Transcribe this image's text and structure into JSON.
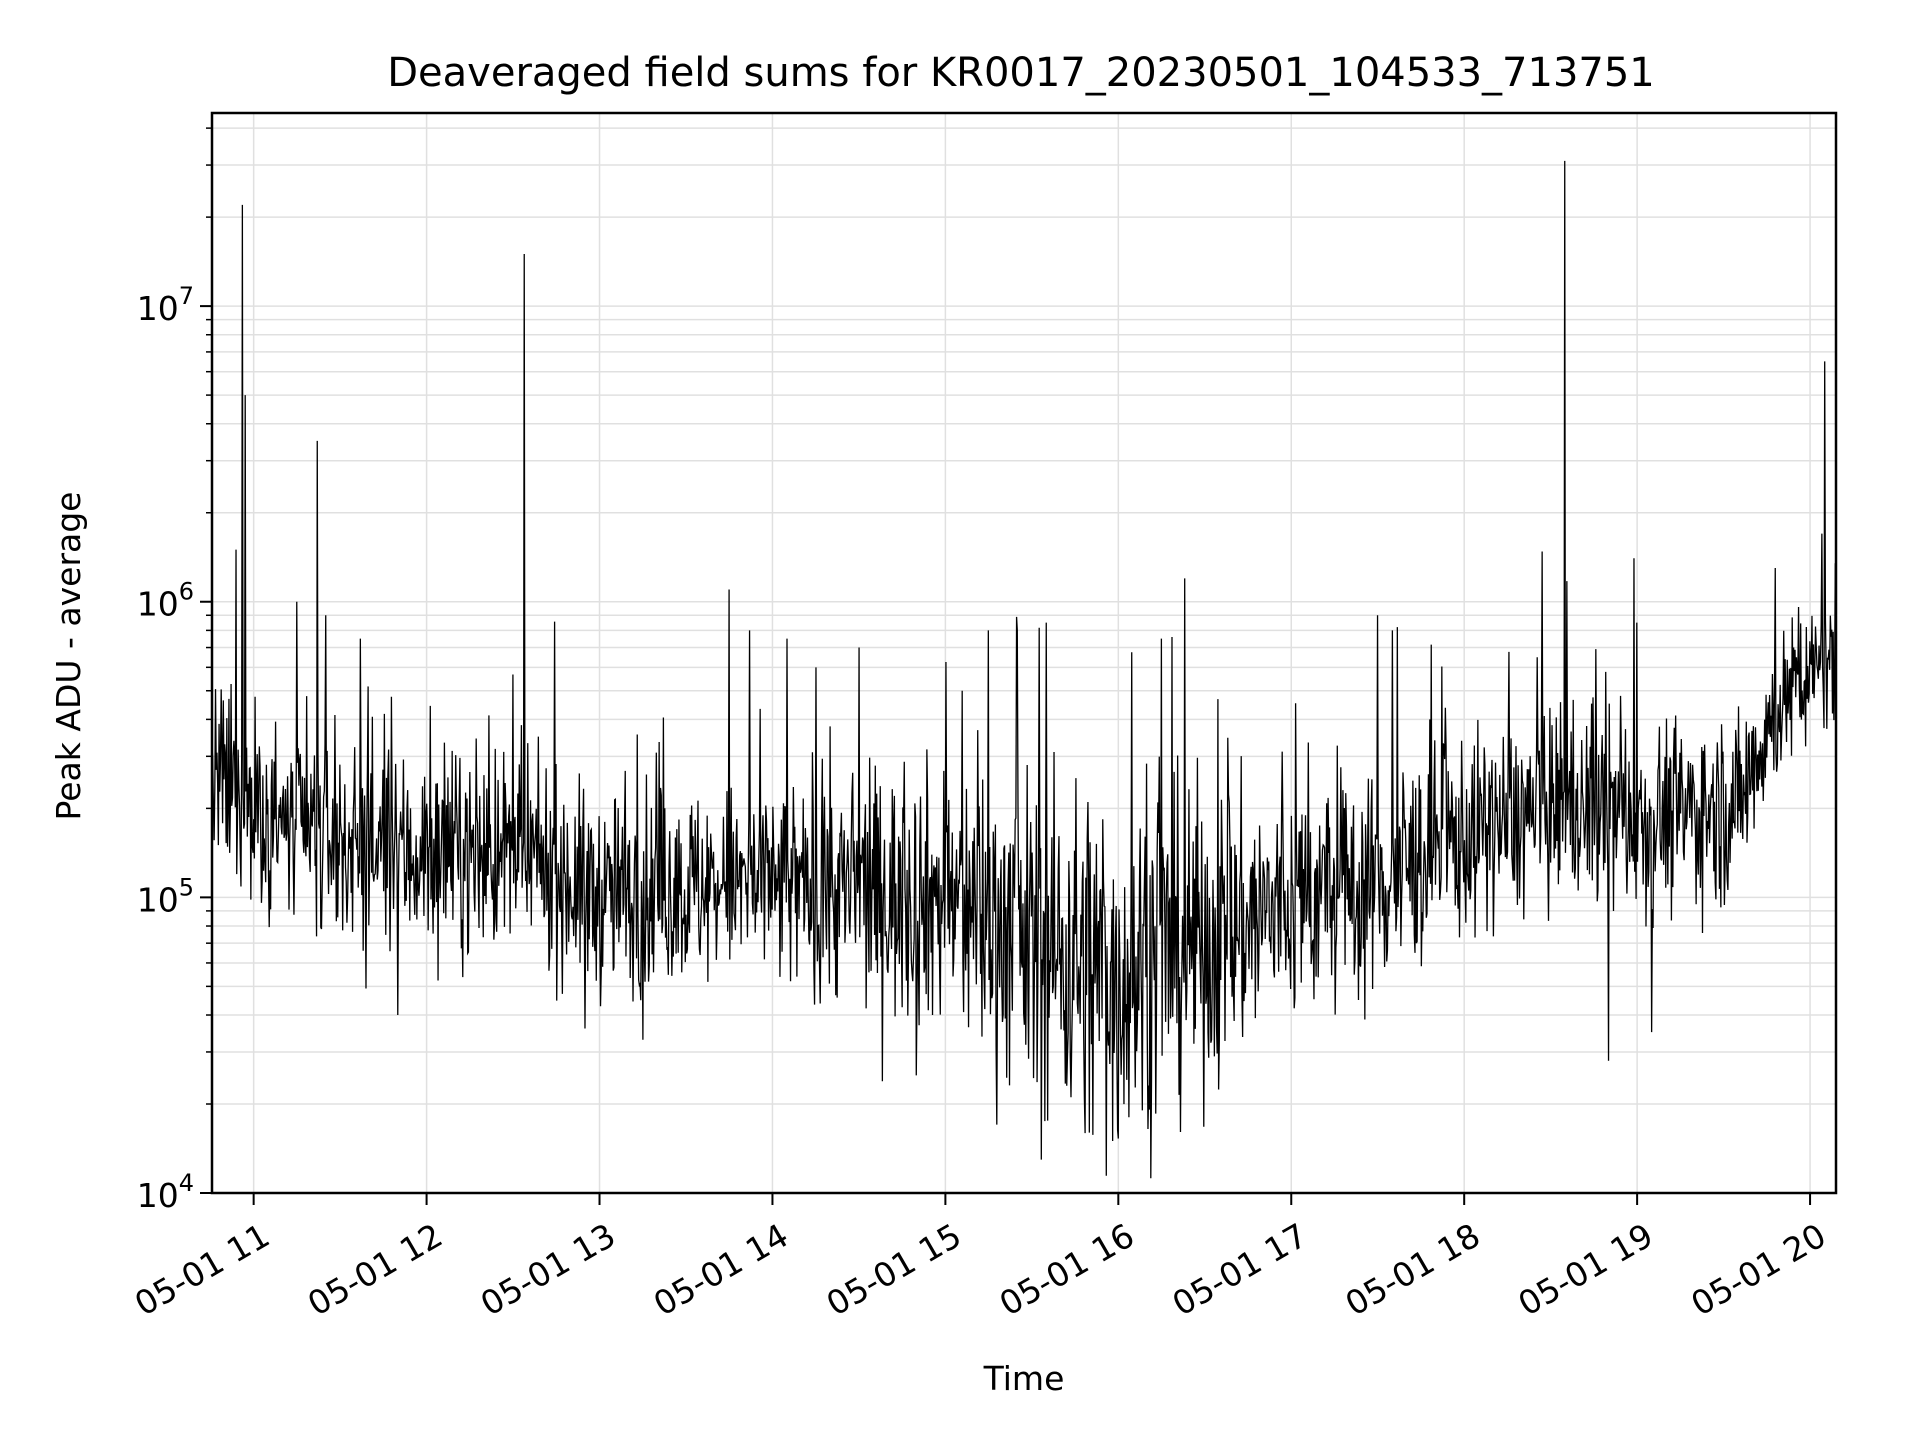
{
  "chart_data": {
    "type": "line",
    "title": "Deaveraged field sums for KR0017_20230501_104533_713751",
    "xlabel": "Time",
    "ylabel": "Peak ADU - average",
    "y_scale": "log",
    "ylim": [
      10000,
      45000000
    ],
    "xlim": [
      "2023-05-01T10:45:33",
      "2023-05-01T20:09:00"
    ],
    "grid": true,
    "legend": "none",
    "line_color": "#000000",
    "grid_color": "#e0e0e0",
    "x_ticks": [
      {
        "time": "2023-05-01T11:00",
        "label": "05-01 11"
      },
      {
        "time": "2023-05-01T12:00",
        "label": "05-01 12"
      },
      {
        "time": "2023-05-01T13:00",
        "label": "05-01 13"
      },
      {
        "time": "2023-05-01T14:00",
        "label": "05-01 14"
      },
      {
        "time": "2023-05-01T15:00",
        "label": "05-01 15"
      },
      {
        "time": "2023-05-01T16:00",
        "label": "05-01 16"
      },
      {
        "time": "2023-05-01T17:00",
        "label": "05-01 17"
      },
      {
        "time": "2023-05-01T18:00",
        "label": "05-01 18"
      },
      {
        "time": "2023-05-01T19:00",
        "label": "05-01 19"
      },
      {
        "time": "2023-05-01T20:00",
        "label": "05-01 20"
      }
    ],
    "y_ticks": [
      {
        "value": 10000,
        "base": "10",
        "exp": "4"
      },
      {
        "value": 100000,
        "base": "10",
        "exp": "5"
      },
      {
        "value": 1000000,
        "base": "10",
        "exp": "6"
      },
      {
        "value": 10000000,
        "base": "10",
        "exp": "7"
      }
    ],
    "x": [
      "2023-05-01T10:45:33",
      "2023-05-01T10:55:00",
      "2023-05-01T10:56:00",
      "2023-05-01T10:57:00",
      "2023-05-01T10:58:00",
      "2023-05-01T11:05:00",
      "2023-05-01T11:20:00",
      "2023-05-01T11:22:00",
      "2023-05-01T11:30:00",
      "2023-05-01T11:40:00",
      "2023-05-01T11:50:00",
      "2023-05-01T12:00:00",
      "2023-05-01T12:15:00",
      "2023-05-01T12:32:00",
      "2023-05-01T12:34:00",
      "2023-05-01T12:45:00",
      "2023-05-01T13:00:00",
      "2023-05-01T13:15:00",
      "2023-05-01T13:30:00",
      "2023-05-01T13:40:00",
      "2023-05-01T13:48:00",
      "2023-05-01T14:00:00",
      "2023-05-01T14:20:00",
      "2023-05-01T14:40:00",
      "2023-05-01T15:00:00",
      "2023-05-01T15:15:00",
      "2023-05-01T15:30:00",
      "2023-05-01T15:45:00",
      "2023-05-01T16:00:00",
      "2023-05-01T16:15:00",
      "2023-05-01T16:30:00",
      "2023-05-01T16:45:00",
      "2023-05-01T17:00:00",
      "2023-05-01T17:20:00",
      "2023-05-01T17:40:00",
      "2023-05-01T18:00:00",
      "2023-05-01T18:20:00",
      "2023-05-01T18:33:00",
      "2023-05-01T18:35:00",
      "2023-05-01T18:50:00",
      "2023-05-01T19:10:00",
      "2023-05-01T19:30:00",
      "2023-05-01T19:40:00",
      "2023-05-01T19:50:00",
      "2023-05-01T20:00:00",
      "2023-05-01T20:05:00",
      "2023-05-01T20:09:00"
    ],
    "y": [
      280000,
      1000000,
      22000000,
      5000000,
      900000,
      200000,
      170000,
      3500000,
      160000,
      150000,
      140000,
      150000,
      160000,
      150000,
      15000000,
      120000,
      100000,
      100000,
      110000,
      400000,
      120000,
      100000,
      100000,
      95000,
      80000,
      60000,
      40000,
      35000,
      30000,
      40000,
      65000,
      80000,
      95000,
      100000,
      110000,
      150000,
      200000,
      200000,
      31000000,
      210000,
      200000,
      200000,
      190000,
      400000,
      550000,
      6500000,
      750000
    ],
    "noise_profile": {
      "x": [
        "2023-05-01T10:45:33",
        "2023-05-01T11:10:00",
        "2023-05-01T11:50:00",
        "2023-05-01T12:30:00",
        "2023-05-01T13:00:00",
        "2023-05-01T13:40:00",
        "2023-05-01T14:20:00",
        "2023-05-01T15:00:00",
        "2023-05-01T15:30:00",
        "2023-05-01T16:00:00",
        "2023-05-01T16:30:00",
        "2023-05-01T17:00:00",
        "2023-05-01T17:30:00",
        "2023-05-01T18:00:00",
        "2023-05-01T18:30:00",
        "2023-05-01T19:00:00",
        "2023-05-01T19:35:00",
        "2023-05-01T19:50:00",
        "2023-05-01T20:09:00"
      ],
      "median": [
        250000,
        170000,
        140000,
        140000,
        100000,
        110000,
        105000,
        100000,
        70000,
        55000,
        70000,
        95000,
        110000,
        160000,
        200000,
        190000,
        200000,
        450000,
        650000
      ],
      "spread_decades": [
        0.22,
        0.22,
        0.22,
        0.22,
        0.22,
        0.22,
        0.24,
        0.3,
        0.38,
        0.42,
        0.34,
        0.26,
        0.25,
        0.22,
        0.22,
        0.22,
        0.2,
        0.16,
        0.16
      ]
    },
    "spikes": [
      {
        "x": "2023-05-01T10:54:00",
        "y": 1500000
      },
      {
        "x": "2023-05-01T11:15:00",
        "y": 1000000
      },
      {
        "x": "2023-05-01T11:25:00",
        "y": 900000
      },
      {
        "x": "2023-05-01T11:37:00",
        "y": 750000
      },
      {
        "x": "2023-05-01T13:45:00",
        "y": 1100000
      },
      {
        "x": "2023-05-01T13:52:00",
        "y": 800000
      },
      {
        "x": "2023-05-01T14:05:00",
        "y": 750000
      },
      {
        "x": "2023-05-01T14:15:00",
        "y": 600000
      },
      {
        "x": "2023-05-01T14:30:00",
        "y": 700000
      },
      {
        "x": "2023-05-01T15:15:00",
        "y": 800000
      },
      {
        "x": "2023-05-01T15:25:00",
        "y": 800000
      },
      {
        "x": "2023-05-01T15:35:00",
        "y": 850000
      },
      {
        "x": "2023-05-01T16:23:00",
        "y": 1200000
      },
      {
        "x": "2023-05-01T16:15:00",
        "y": 750000
      },
      {
        "x": "2023-05-01T17:30:00",
        "y": 900000
      },
      {
        "x": "2023-05-01T17:35:00",
        "y": 800000
      },
      {
        "x": "2023-05-01T19:00:00",
        "y": 850000
      },
      {
        "x": "2023-05-01T20:04:00",
        "y": 1700000
      },
      {
        "x": "2023-05-01T19:48:00",
        "y": 1300000
      }
    ],
    "dips": [
      {
        "x": "2023-05-01T11:50:00",
        "y": 40000
      },
      {
        "x": "2023-05-01T12:55:00",
        "y": 36000
      },
      {
        "x": "2023-05-01T13:15:00",
        "y": 33000
      },
      {
        "x": "2023-05-01T14:50:00",
        "y": 25000
      },
      {
        "x": "2023-05-01T15:50:00",
        "y": 16000
      },
      {
        "x": "2023-05-01T15:58:00",
        "y": 15000
      },
      {
        "x": "2023-05-01T18:50:00",
        "y": 28000
      },
      {
        "x": "2023-05-01T19:05:00",
        "y": 35000
      }
    ]
  }
}
